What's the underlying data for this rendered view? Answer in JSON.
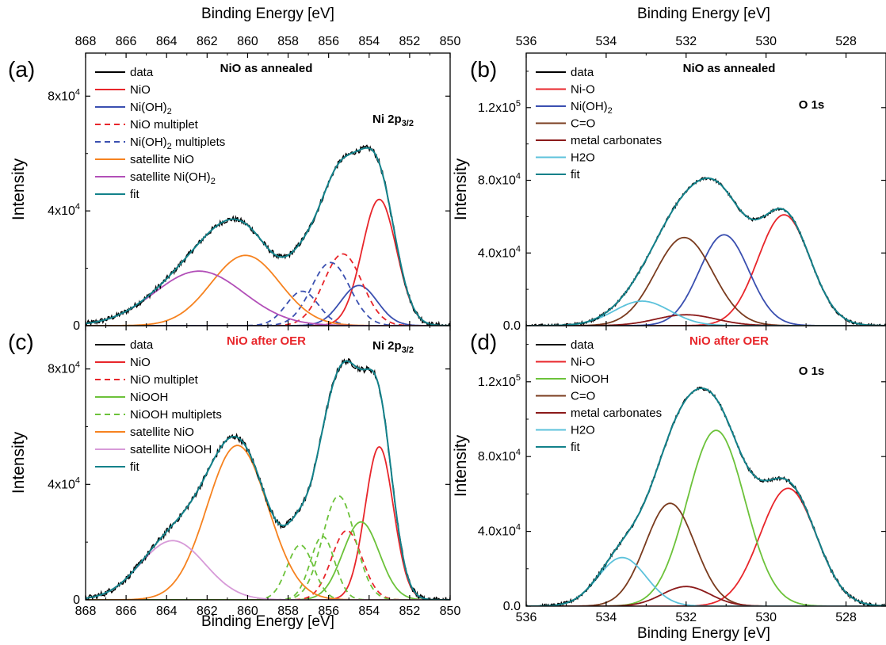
{
  "figure": {
    "type": "xps-spectra-4-panel"
  },
  "chart_data": [
    {
      "type": "line",
      "panel_label": "(a)",
      "region": "Ni 2p3/2",
      "annotation": "NiO as annealed",
      "annotation_color": "#000000",
      "region_label": "Ni 2p",
      "region_sub": "3/2",
      "xlabel": "Binding Energy [eV]",
      "xlabel_position": "top",
      "ylabel": "Intensity",
      "xlim": [
        868,
        850
      ],
      "ylim": [
        0,
        95000
      ],
      "xticks": [
        868,
        866,
        864,
        862,
        860,
        858,
        856,
        854,
        852,
        850
      ],
      "yticks": [
        {
          "v": 0,
          "label": "0"
        },
        {
          "v": 40000,
          "label": "4x10",
          "exp": "4"
        },
        {
          "v": 80000,
          "label": "8x10",
          "exp": "4"
        }
      ],
      "noise": 900,
      "legend": [
        {
          "label": "data",
          "color": "#000000",
          "dash": false
        },
        {
          "label": "NiO",
          "color": "#e8262b",
          "dash": false
        },
        {
          "label": "Ni(OH)",
          "sub": "2",
          "color": "#3a4fb0",
          "dash": false
        },
        {
          "label": "NiO multiplet",
          "color": "#e8262b",
          "dash": true
        },
        {
          "label": "Ni(OH)",
          "sub": "2",
          "suffix": " multiplets",
          "color": "#3a4fb0",
          "dash": true
        },
        {
          "label": "satellite NiO",
          "color": "#f6821f",
          "dash": false
        },
        {
          "label": "satellite Ni(OH)",
          "sub": "2",
          "color": "#b24fb8",
          "dash": false
        },
        {
          "label": "fit",
          "color": "#12818a",
          "dash": false
        }
      ],
      "components": [
        {
          "name": "NiO",
          "color": "#e8262b",
          "dash": false,
          "center": 853.5,
          "amp": 44000,
          "sigma": 0.85
        },
        {
          "name": "Ni(OH)2",
          "color": "#3a4fb0",
          "dash": false,
          "center": 854.5,
          "amp": 14000,
          "sigma": 0.9
        },
        {
          "name": "NiO multiplet",
          "color": "#e8262b",
          "dash": true,
          "center": 855.3,
          "amp": 25000,
          "sigma": 0.95
        },
        {
          "name": "Ni(OH)2 multiplet 1",
          "color": "#3a4fb0",
          "dash": true,
          "center": 855.9,
          "amp": 22000,
          "sigma": 0.95
        },
        {
          "name": "Ni(OH)2 multiplet 2",
          "color": "#3a4fb0",
          "dash": true,
          "center": 857.3,
          "amp": 12000,
          "sigma": 0.8
        },
        {
          "name": "satellite NiO",
          "color": "#f6821f",
          "dash": false,
          "center": 860.1,
          "amp": 24500,
          "sigma": 1.7
        },
        {
          "name": "satellite Ni(OH)2",
          "color": "#b24fb8",
          "dash": false,
          "center": 862.4,
          "amp": 19000,
          "sigma": 2.2
        }
      ],
      "fit_color": "#12818a"
    },
    {
      "type": "line",
      "panel_label": "(b)",
      "region": "O 1s",
      "annotation": "NiO as annealed",
      "annotation_color": "#000000",
      "region_label": "O 1s",
      "region_sub": "",
      "xlabel": "Binding Energy [eV]",
      "xlabel_position": "top",
      "ylabel": "Intensity",
      "xlim": [
        536,
        527
      ],
      "ylim": [
        0,
        150000
      ],
      "xticks": [
        536,
        534,
        532,
        530,
        528
      ],
      "yticks": [
        {
          "v": 0,
          "label": "0.0"
        },
        {
          "v": 40000,
          "label": "4.0x10",
          "exp": "4"
        },
        {
          "v": 80000,
          "label": "8.0x10",
          "exp": "4"
        },
        {
          "v": 120000,
          "label": "1.2x10",
          "exp": "5"
        }
      ],
      "noise": 800,
      "legend": [
        {
          "label": "data",
          "color": "#000000",
          "dash": false
        },
        {
          "label": "Ni-O",
          "color": "#e8262b",
          "dash": false
        },
        {
          "label": "Ni(OH)",
          "sub": "2",
          "color": "#3a4fb0",
          "dash": false
        },
        {
          "label": "C=O",
          "color": "#7a3b1e",
          "dash": false
        },
        {
          "label": "metal carbonates",
          "color": "#8b1a1a",
          "dash": false
        },
        {
          "label": "H2O",
          "color": "#5cc2db",
          "dash": false
        },
        {
          "label": "fit",
          "color": "#12818a",
          "dash": false
        }
      ],
      "components": [
        {
          "name": "Ni-O",
          "color": "#e8262b",
          "dash": false,
          "center": 529.55,
          "amp": 61000,
          "sigma": 0.65
        },
        {
          "name": "Ni(OH)2",
          "color": "#3a4fb0",
          "dash": false,
          "center": 531.05,
          "amp": 50000,
          "sigma": 0.62
        },
        {
          "name": "C=O",
          "color": "#7a3b1e",
          "dash": false,
          "center": 532.05,
          "amp": 48500,
          "sigma": 0.72
        },
        {
          "name": "metal carbonates",
          "color": "#8b1a1a",
          "dash": false,
          "center": 532.0,
          "amp": 6000,
          "sigma": 0.75
        },
        {
          "name": "H2O",
          "color": "#5cc2db",
          "dash": false,
          "center": 533.1,
          "amp": 13500,
          "sigma": 0.7
        }
      ],
      "fit_color": "#12818a"
    },
    {
      "type": "line",
      "panel_label": "(c)",
      "region": "Ni 2p3/2",
      "annotation": "NiO after OER",
      "annotation_color": "#e8262b",
      "region_label": "Ni 2p",
      "region_sub": "3/2",
      "xlabel": "Binding Energy [eV]",
      "xlabel_position": "bottom",
      "ylabel": "Intensity",
      "xlim": [
        868,
        850
      ],
      "ylim": [
        0,
        95000
      ],
      "xticks": [
        868,
        866,
        864,
        862,
        860,
        858,
        856,
        854,
        852,
        850
      ],
      "yticks": [
        {
          "v": 0,
          "label": "0"
        },
        {
          "v": 40000,
          "label": "4x10",
          "exp": "4"
        },
        {
          "v": 80000,
          "label": "8x10",
          "exp": "4"
        }
      ],
      "noise": 1000,
      "legend": [
        {
          "label": "data",
          "color": "#000000",
          "dash": false
        },
        {
          "label": "NiO",
          "color": "#e8262b",
          "dash": false
        },
        {
          "label": "NiO multiplet",
          "color": "#e8262b",
          "dash": true
        },
        {
          "label": "NiOOH",
          "color": "#6cc23a",
          "dash": false
        },
        {
          "label": "NiOOH multiplets",
          "color": "#6cc23a",
          "dash": true
        },
        {
          "label": "satellite NiO",
          "color": "#f6821f",
          "dash": false
        },
        {
          "label": "satellite NiOOH",
          "color": "#d79ad8",
          "dash": false
        },
        {
          "label": "fit",
          "color": "#12818a",
          "dash": false
        }
      ],
      "components": [
        {
          "name": "NiO",
          "color": "#e8262b",
          "dash": false,
          "center": 853.5,
          "amp": 53000,
          "sigma": 0.7
        },
        {
          "name": "NiOOH",
          "color": "#6cc23a",
          "dash": false,
          "center": 854.4,
          "amp": 27000,
          "sigma": 0.9
        },
        {
          "name": "NiO multiplet",
          "color": "#e8262b",
          "dash": true,
          "center": 855.1,
          "amp": 24000,
          "sigma": 0.75
        },
        {
          "name": "NiOOH multiplet 1",
          "color": "#6cc23a",
          "dash": true,
          "center": 855.5,
          "amp": 36000,
          "sigma": 0.8
        },
        {
          "name": "NiOOH multiplet 2",
          "color": "#6cc23a",
          "dash": true,
          "center": 856.3,
          "amp": 22000,
          "sigma": 0.6
        },
        {
          "name": "NiOOH multiplet 3",
          "color": "#6cc23a",
          "dash": true,
          "center": 857.4,
          "amp": 19000,
          "sigma": 0.65
        },
        {
          "name": "satellite NiO",
          "color": "#f6821f",
          "dash": false,
          "center": 860.5,
          "amp": 53500,
          "sigma": 1.5
        },
        {
          "name": "satellite NiOOH",
          "color": "#d79ad8",
          "dash": false,
          "center": 863.7,
          "amp": 20500,
          "sigma": 1.6
        }
      ],
      "fit_color": "#12818a"
    },
    {
      "type": "line",
      "panel_label": "(d)",
      "region": "O 1s",
      "annotation": "NiO after OER",
      "annotation_color": "#e8262b",
      "region_label": "O 1s",
      "region_sub": "",
      "xlabel": "Binding Energy [eV]",
      "xlabel_position": "bottom",
      "ylabel": "Intensity",
      "xlim": [
        536,
        527
      ],
      "ylim": [
        0,
        150000
      ],
      "xticks": [
        536,
        534,
        532,
        530,
        528
      ],
      "yticks": [
        {
          "v": 0,
          "label": "0.0"
        },
        {
          "v": 40000,
          "label": "4.0x10",
          "exp": "4"
        },
        {
          "v": 80000,
          "label": "8.0x10",
          "exp": "4"
        },
        {
          "v": 120000,
          "label": "1.2x10",
          "exp": "5"
        }
      ],
      "noise": 900,
      "legend": [
        {
          "label": "data",
          "color": "#000000",
          "dash": false
        },
        {
          "label": "Ni-O",
          "color": "#e8262b",
          "dash": false
        },
        {
          "label": "NiOOH",
          "color": "#6cc23a",
          "dash": false
        },
        {
          "label": "C=O",
          "color": "#7a3b1e",
          "dash": false
        },
        {
          "label": "metal carbonates",
          "color": "#8b1a1a",
          "dash": false
        },
        {
          "label": "H2O",
          "color": "#5cc2db",
          "dash": false
        },
        {
          "label": "fit",
          "color": "#12818a",
          "dash": false
        }
      ],
      "components": [
        {
          "name": "Ni-O",
          "color": "#e8262b",
          "dash": false,
          "center": 529.45,
          "amp": 63000,
          "sigma": 0.7
        },
        {
          "name": "NiOOH",
          "color": "#6cc23a",
          "dash": false,
          "center": 531.25,
          "amp": 94000,
          "sigma": 0.72
        },
        {
          "name": "C=O",
          "color": "#7a3b1e",
          "dash": false,
          "center": 532.4,
          "amp": 55000,
          "sigma": 0.62
        },
        {
          "name": "metal carbonates",
          "color": "#8b1a1a",
          "dash": false,
          "center": 532.0,
          "amp": 10500,
          "sigma": 0.6
        },
        {
          "name": "H2O",
          "color": "#5cc2db",
          "dash": false,
          "center": 533.6,
          "amp": 26000,
          "sigma": 0.6
        }
      ],
      "fit_color": "#12818a"
    }
  ]
}
